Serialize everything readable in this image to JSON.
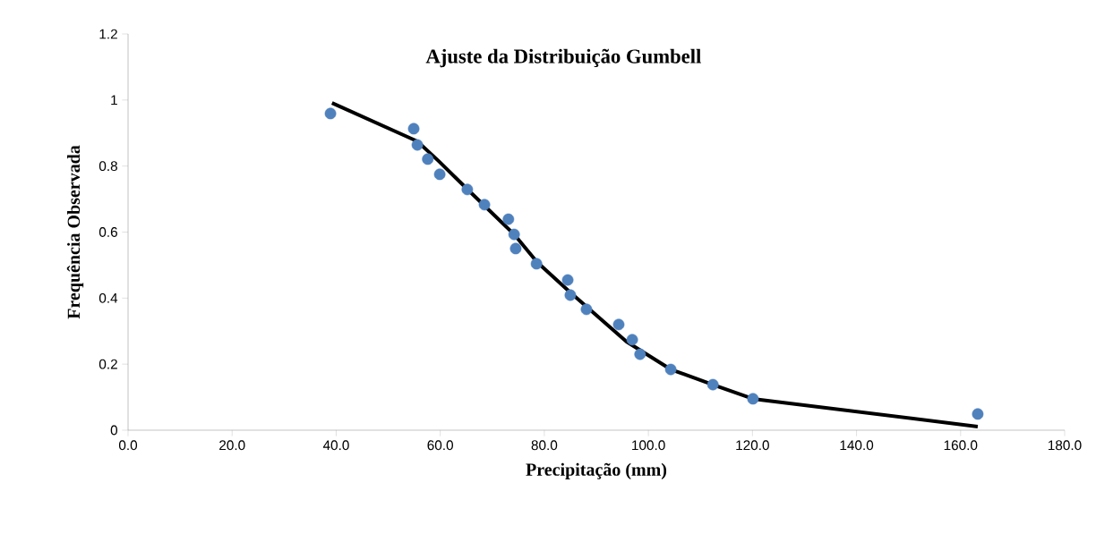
{
  "chart_data": {
    "type": "scatter",
    "title": "Ajuste da Distribuição Gumbell",
    "xlabel": "Precipitação (mm)",
    "ylabel": "Frequência Observada",
    "series": [
      {
        "color": "#4f81bd",
        "marker": "circle",
        "x": [
          38.9,
          54.9,
          55.6,
          57.6,
          59.9,
          65.2,
          68.5,
          73.1,
          74.2,
          74.5,
          78.5,
          84.5,
          85.0,
          88.1,
          94.3,
          96.9,
          98.4,
          104.3,
          112.4,
          120.1,
          163.3
        ],
        "values": [
          0.959,
          0.913,
          0.864,
          0.821,
          0.775,
          0.729,
          0.683,
          0.639,
          0.593,
          0.55,
          0.504,
          0.455,
          0.409,
          0.366,
          0.32,
          0.274,
          0.23,
          0.184,
          0.138,
          0.095,
          0.049
        ]
      },
      {
        "type": "line",
        "color": "#000000",
        "marker": "none",
        "line_style": "solid",
        "x": [
          39.2,
          55.6,
          59.7,
          65.2,
          74.2,
          78.6,
          85.0,
          95.8,
          104.3,
          112.4,
          120.1,
          163.3
        ],
        "values": [
          0.991,
          0.875,
          0.815,
          0.73,
          0.593,
          0.509,
          0.417,
          0.268,
          0.184,
          0.138,
          0.095,
          0.011
        ]
      }
    ],
    "xlim": [
      0,
      180
    ],
    "ylim": [
      0,
      1.2
    ],
    "xticks": [
      {
        "value": 0,
        "label": "0.0"
      },
      {
        "value": 20,
        "label": "20.0"
      },
      {
        "value": 40,
        "label": "40.0"
      },
      {
        "value": 60,
        "label": "60.0"
      },
      {
        "value": 80,
        "label": "80.0"
      },
      {
        "value": 100,
        "label": "100.0"
      },
      {
        "value": 120,
        "label": "120.0"
      },
      {
        "value": 140,
        "label": "140.0"
      },
      {
        "value": 160,
        "label": "160.0"
      },
      {
        "value": 180,
        "label": "180.0"
      }
    ],
    "yticks": [
      0,
      0.2,
      0.4,
      0.6,
      0.8,
      1,
      1.2
    ],
    "grid": false,
    "legend": false
  }
}
